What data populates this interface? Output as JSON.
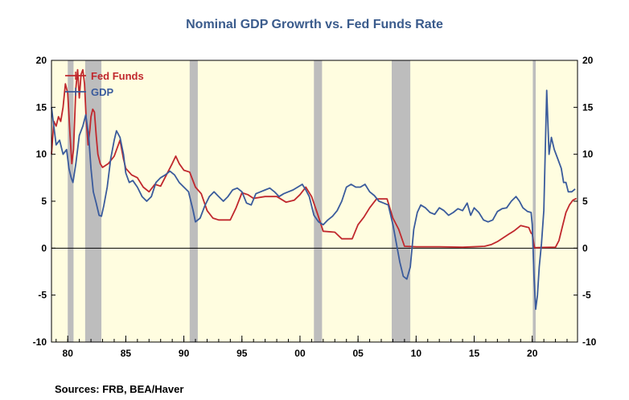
{
  "chart_data": {
    "type": "line",
    "title": "Nominal GDP Growrth vs. Fed Funds Rate",
    "source": "Sources:  FRB, BEA/Haver",
    "xlim": [
      1978.6,
      2023.9
    ],
    "ylim": [
      -10,
      20
    ],
    "yticks": [
      -10,
      -5,
      0,
      5,
      10,
      15,
      20
    ],
    "ytick_labels": [
      "-10",
      "-5",
      "0",
      "5",
      "10",
      "15",
      "20"
    ],
    "xticks": [
      1980,
      1985,
      1990,
      1995,
      2000,
      2005,
      2010,
      2015,
      2020
    ],
    "xtick_labels": [
      "80",
      "85",
      "90",
      "95",
      "00",
      "05",
      "10",
      "15",
      "20"
    ],
    "background_color": "#fffde0",
    "recession_color": "#bdbdbd",
    "recessions": [
      [
        1980.0,
        1980.5
      ],
      [
        1981.5,
        1982.9
      ],
      [
        1990.5,
        1991.2
      ],
      [
        2001.2,
        2001.9
      ],
      [
        2007.9,
        2009.5
      ],
      [
        2020.05,
        2020.3
      ]
    ],
    "legend_position": "top-left",
    "series": [
      {
        "name": "Fed Funds",
        "color": "#c0282d",
        "points": [
          [
            1978.6,
            10.0
          ],
          [
            1978.8,
            13.5
          ],
          [
            1979.0,
            13.0
          ],
          [
            1979.2,
            14.0
          ],
          [
            1979.4,
            13.5
          ],
          [
            1979.6,
            15.0
          ],
          [
            1979.8,
            17.5
          ],
          [
            1980.0,
            16.5
          ],
          [
            1980.2,
            12.0
          ],
          [
            1980.35,
            9.0
          ],
          [
            1980.5,
            10.5
          ],
          [
            1980.7,
            17.0
          ],
          [
            1980.85,
            19.0
          ],
          [
            1981.0,
            16.0
          ],
          [
            1981.15,
            18.5
          ],
          [
            1981.3,
            19.0
          ],
          [
            1981.45,
            17.5
          ],
          [
            1981.6,
            13.5
          ],
          [
            1981.75,
            11.0
          ],
          [
            1981.9,
            12.5
          ],
          [
            1982.0,
            14.0
          ],
          [
            1982.15,
            14.8
          ],
          [
            1982.3,
            14.5
          ],
          [
            1982.45,
            12.0
          ],
          [
            1982.6,
            10.0
          ],
          [
            1982.8,
            9.0
          ],
          [
            1983.0,
            8.6
          ],
          [
            1983.5,
            9.0
          ],
          [
            1984.0,
            9.8
          ],
          [
            1984.5,
            11.5
          ],
          [
            1984.8,
            9.5
          ],
          [
            1985.0,
            8.5
          ],
          [
            1985.5,
            7.8
          ],
          [
            1986.0,
            7.5
          ],
          [
            1986.5,
            6.5
          ],
          [
            1987.0,
            6.0
          ],
          [
            1987.5,
            6.8
          ],
          [
            1988.0,
            6.6
          ],
          [
            1988.5,
            7.8
          ],
          [
            1989.0,
            9.0
          ],
          [
            1989.3,
            9.8
          ],
          [
            1989.6,
            9.0
          ],
          [
            1990.0,
            8.3
          ],
          [
            1990.5,
            8.1
          ],
          [
            1991.0,
            6.5
          ],
          [
            1991.5,
            5.8
          ],
          [
            1992.0,
            4.0
          ],
          [
            1992.5,
            3.2
          ],
          [
            1993.0,
            3.0
          ],
          [
            1994.0,
            3.0
          ],
          [
            1994.5,
            4.3
          ],
          [
            1995.0,
            5.9
          ],
          [
            1995.5,
            5.7
          ],
          [
            1996.0,
            5.3
          ],
          [
            1997.0,
            5.5
          ],
          [
            1998.0,
            5.5
          ],
          [
            1998.8,
            4.9
          ],
          [
            1999.5,
            5.1
          ],
          [
            2000.0,
            5.7
          ],
          [
            2000.5,
            6.5
          ],
          [
            2001.0,
            5.5
          ],
          [
            2001.5,
            3.7
          ],
          [
            2002.0,
            1.8
          ],
          [
            2003.0,
            1.7
          ],
          [
            2003.6,
            1.0
          ],
          [
            2004.5,
            1.0
          ],
          [
            2005.0,
            2.5
          ],
          [
            2005.5,
            3.3
          ],
          [
            2006.0,
            4.3
          ],
          [
            2006.6,
            5.25
          ],
          [
            2007.5,
            5.25
          ],
          [
            2008.0,
            3.2
          ],
          [
            2008.5,
            2.0
          ],
          [
            2009.0,
            0.2
          ],
          [
            2010.0,
            0.15
          ],
          [
            2012.0,
            0.15
          ],
          [
            2014.0,
            0.1
          ],
          [
            2015.9,
            0.2
          ],
          [
            2016.5,
            0.4
          ],
          [
            2017.0,
            0.7
          ],
          [
            2017.5,
            1.1
          ],
          [
            2018.0,
            1.5
          ],
          [
            2018.5,
            1.9
          ],
          [
            2019.0,
            2.4
          ],
          [
            2019.7,
            2.2
          ],
          [
            2019.9,
            1.6
          ],
          [
            2020.0,
            1.5
          ],
          [
            2020.2,
            0.05
          ],
          [
            2021.0,
            0.08
          ],
          [
            2022.0,
            0.1
          ],
          [
            2022.3,
            0.8
          ],
          [
            2022.6,
            2.3
          ],
          [
            2022.9,
            3.8
          ],
          [
            2023.2,
            4.6
          ],
          [
            2023.5,
            5.1
          ],
          [
            2023.8,
            5.3
          ]
        ]
      },
      {
        "name": "GDP",
        "color": "#3a5b9c",
        "points": [
          [
            1978.6,
            15.0
          ],
          [
            1978.8,
            13.0
          ],
          [
            1979.0,
            11.0
          ],
          [
            1979.3,
            11.5
          ],
          [
            1979.6,
            10.0
          ],
          [
            1979.9,
            10.5
          ],
          [
            1980.1,
            8.5
          ],
          [
            1980.3,
            7.5
          ],
          [
            1980.45,
            7.0
          ],
          [
            1980.7,
            9.0
          ],
          [
            1981.0,
            12.0
          ],
          [
            1981.3,
            13.0
          ],
          [
            1981.55,
            14.2
          ],
          [
            1981.8,
            12.0
          ],
          [
            1982.0,
            8.5
          ],
          [
            1982.2,
            6.0
          ],
          [
            1982.45,
            4.8
          ],
          [
            1982.7,
            3.5
          ],
          [
            1982.9,
            3.4
          ],
          [
            1983.1,
            4.5
          ],
          [
            1983.4,
            6.5
          ],
          [
            1983.7,
            9.5
          ],
          [
            1984.0,
            11.5
          ],
          [
            1984.2,
            12.5
          ],
          [
            1984.5,
            11.8
          ],
          [
            1984.8,
            10.0
          ],
          [
            1985.0,
            8.0
          ],
          [
            1985.3,
            7.0
          ],
          [
            1985.6,
            7.2
          ],
          [
            1986.0,
            6.5
          ],
          [
            1986.4,
            5.5
          ],
          [
            1986.8,
            5.0
          ],
          [
            1987.2,
            5.5
          ],
          [
            1987.6,
            7.0
          ],
          [
            1988.0,
            7.5
          ],
          [
            1988.4,
            7.8
          ],
          [
            1988.8,
            8.2
          ],
          [
            1989.2,
            7.8
          ],
          [
            1989.6,
            7.0
          ],
          [
            1990.0,
            6.5
          ],
          [
            1990.4,
            6.0
          ],
          [
            1990.8,
            4.0
          ],
          [
            1991.0,
            2.8
          ],
          [
            1991.4,
            3.2
          ],
          [
            1991.8,
            4.5
          ],
          [
            1992.2,
            5.5
          ],
          [
            1992.6,
            6.0
          ],
          [
            1993.0,
            5.5
          ],
          [
            1993.4,
            5.0
          ],
          [
            1993.8,
            5.5
          ],
          [
            1994.2,
            6.2
          ],
          [
            1994.6,
            6.4
          ],
          [
            1995.0,
            6.0
          ],
          [
            1995.4,
            4.8
          ],
          [
            1995.8,
            4.6
          ],
          [
            1996.2,
            5.8
          ],
          [
            1996.6,
            6.0
          ],
          [
            1997.0,
            6.2
          ],
          [
            1997.4,
            6.4
          ],
          [
            1997.8,
            6.0
          ],
          [
            1998.2,
            5.5
          ],
          [
            1998.6,
            5.8
          ],
          [
            1999.0,
            6.0
          ],
          [
            1999.4,
            6.2
          ],
          [
            1999.8,
            6.5
          ],
          [
            2000.2,
            6.8
          ],
          [
            2000.5,
            6.2
          ],
          [
            2000.8,
            5.5
          ],
          [
            2001.2,
            3.5
          ],
          [
            2001.6,
            2.8
          ],
          [
            2002.0,
            2.5
          ],
          [
            2002.4,
            3.0
          ],
          [
            2002.8,
            3.4
          ],
          [
            2003.2,
            4.0
          ],
          [
            2003.6,
            5.0
          ],
          [
            2004.0,
            6.5
          ],
          [
            2004.4,
            6.8
          ],
          [
            2004.8,
            6.5
          ],
          [
            2005.2,
            6.5
          ],
          [
            2005.6,
            6.8
          ],
          [
            2006.0,
            6.0
          ],
          [
            2006.4,
            5.6
          ],
          [
            2006.8,
            5.0
          ],
          [
            2007.2,
            4.8
          ],
          [
            2007.6,
            4.6
          ],
          [
            2008.0,
            2.5
          ],
          [
            2008.3,
            0.5
          ],
          [
            2008.6,
            -1.5
          ],
          [
            2008.9,
            -3.0
          ],
          [
            2009.2,
            -3.3
          ],
          [
            2009.5,
            -2.0
          ],
          [
            2009.8,
            2.0
          ],
          [
            2010.1,
            3.8
          ],
          [
            2010.4,
            4.6
          ],
          [
            2010.8,
            4.3
          ],
          [
            2011.2,
            3.8
          ],
          [
            2011.6,
            3.6
          ],
          [
            2012.0,
            4.3
          ],
          [
            2012.4,
            4.0
          ],
          [
            2012.8,
            3.5
          ],
          [
            2013.2,
            3.8
          ],
          [
            2013.6,
            4.2
          ],
          [
            2014.0,
            4.0
          ],
          [
            2014.4,
            4.8
          ],
          [
            2014.7,
            3.5
          ],
          [
            2015.0,
            4.3
          ],
          [
            2015.4,
            3.8
          ],
          [
            2015.8,
            3.0
          ],
          [
            2016.2,
            2.8
          ],
          [
            2016.6,
            3.0
          ],
          [
            2017.0,
            3.9
          ],
          [
            2017.4,
            4.2
          ],
          [
            2017.8,
            4.3
          ],
          [
            2018.2,
            5.0
          ],
          [
            2018.6,
            5.5
          ],
          [
            2018.9,
            5.0
          ],
          [
            2019.2,
            4.3
          ],
          [
            2019.6,
            3.9
          ],
          [
            2019.9,
            3.8
          ],
          [
            2020.0,
            2.5
          ],
          [
            2020.15,
            -3.0
          ],
          [
            2020.3,
            -6.5
          ],
          [
            2020.45,
            -5.0
          ],
          [
            2020.6,
            -2.0
          ],
          [
            2020.8,
            0.5
          ],
          [
            2021.0,
            4.0
          ],
          [
            2021.25,
            16.8
          ],
          [
            2021.45,
            10.0
          ],
          [
            2021.65,
            11.8
          ],
          [
            2021.9,
            10.5
          ],
          [
            2022.2,
            9.5
          ],
          [
            2022.5,
            8.5
          ],
          [
            2022.7,
            7.0
          ],
          [
            2022.9,
            7.0
          ],
          [
            2023.1,
            6.0
          ],
          [
            2023.4,
            6.0
          ],
          [
            2023.7,
            6.3
          ]
        ]
      }
    ]
  }
}
